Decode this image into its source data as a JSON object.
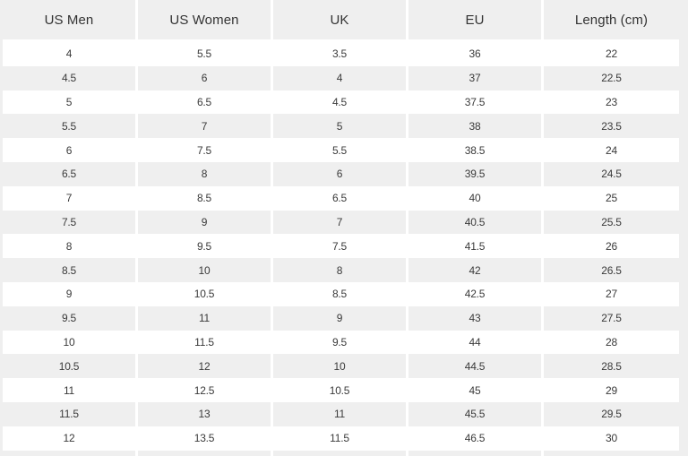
{
  "table": {
    "columns": [
      "US Men",
      "US Women",
      "UK",
      "EU",
      "Length (cm)"
    ],
    "rows": [
      [
        "4",
        "5.5",
        "3.5",
        "36",
        "22"
      ],
      [
        "4.5",
        "6",
        "4",
        "37",
        "22.5"
      ],
      [
        "5",
        "6.5",
        "4.5",
        "37.5",
        "23"
      ],
      [
        "5.5",
        "7",
        "5",
        "38",
        "23.5"
      ],
      [
        "6",
        "7.5",
        "5.5",
        "38.5",
        "24"
      ],
      [
        "6.5",
        "8",
        "6",
        "39.5",
        "24.5"
      ],
      [
        "7",
        "8.5",
        "6.5",
        "40",
        "25"
      ],
      [
        "7.5",
        "9",
        "7",
        "40.5",
        "25.5"
      ],
      [
        "8",
        "9.5",
        "7.5",
        "41.5",
        "26"
      ],
      [
        "8.5",
        "10",
        "8",
        "42",
        "26.5"
      ],
      [
        "9",
        "10.5",
        "8.5",
        "42.5",
        "27"
      ],
      [
        "9.5",
        "11",
        "9",
        "43",
        "27.5"
      ],
      [
        "10",
        "11.5",
        "9.5",
        "44",
        "28"
      ],
      [
        "10.5",
        "12",
        "10",
        "44.5",
        "28.5"
      ],
      [
        "11",
        "12.5",
        "10.5",
        "45",
        "29"
      ],
      [
        "11.5",
        "13",
        "11",
        "45.5",
        "29.5"
      ],
      [
        "12",
        "13.5",
        "11.5",
        "46.5",
        "30"
      ],
      [
        "",
        "",
        "",
        "",
        ""
      ]
    ]
  },
  "colors": {
    "bg": "#efefef",
    "stripe": "#efefef",
    "row": "#ffffff",
    "divider": "#ffffff",
    "text": "#3a3a3a",
    "header-text": "#333333"
  }
}
